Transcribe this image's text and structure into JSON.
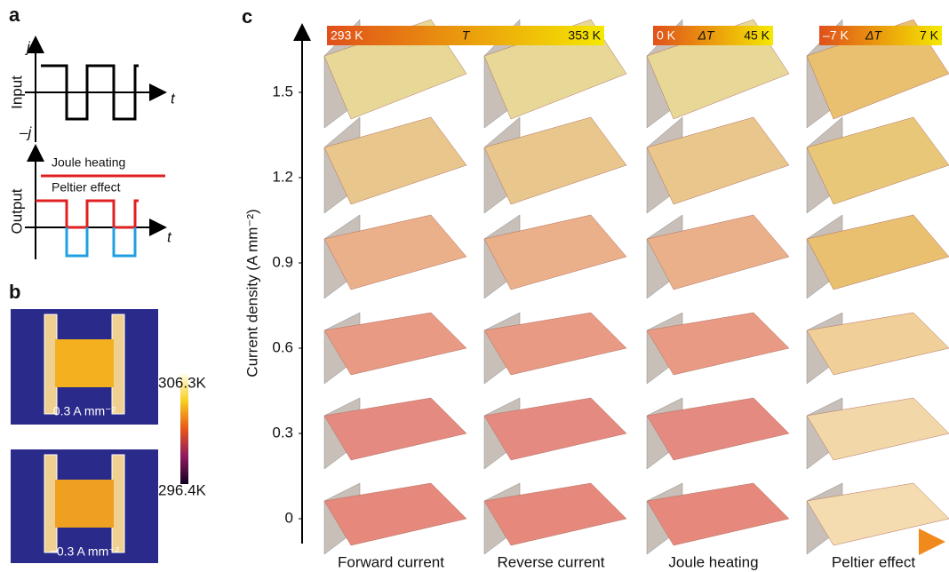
{
  "panel_a": {
    "label": "a",
    "input_axis_label": "Input",
    "j_label": "j",
    "neg_j_label": "–j",
    "t_label_top": "t",
    "output_axis_label": "Output",
    "joule_label": "Joule heating",
    "peltier_label": "Peltier effect",
    "t_label_bottom": "t"
  },
  "panel_b": {
    "label": "b",
    "image_top_label": "0.3 A mm⁻²",
    "image_bottom_label": "−0.3 A mm⁻²",
    "colorbar_max": "306.3K",
    "colorbar_min": "296.4K"
  },
  "panel_c": {
    "label": "c",
    "y_axis_label": "Current density (A mm⁻²)",
    "yticks": [
      1.5,
      1.2,
      0.9,
      0.6,
      0.3,
      0
    ],
    "colorbars": [
      {
        "min": "293 K",
        "name": "T",
        "max": "353 K"
      },
      {
        "min": "0 K",
        "name": "ΔT",
        "max": "45 K"
      },
      {
        "min": "–7 K",
        "name": "ΔT",
        "max": "7 K"
      }
    ],
    "columns": [
      "Forward current",
      "Reverse current",
      "Joule heating",
      "Peltier effect"
    ]
  }
}
